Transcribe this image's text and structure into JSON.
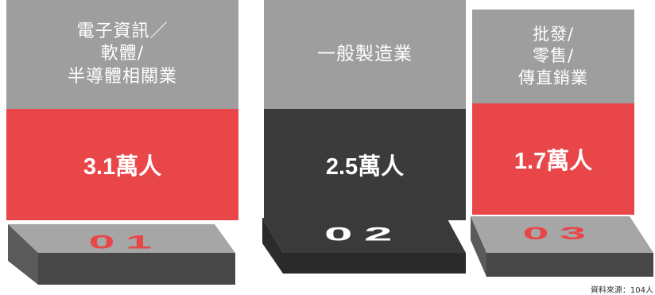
{
  "colors": {
    "gray": "#9e9e9e",
    "red": "#e9464a",
    "dark": "#3b3b3b",
    "plinth_top_red": "#a6a6a6",
    "plinth_top_dark": "#3a3a3a"
  },
  "columns": [
    {
      "category": "電子資訊／\n軟體/\n半導體相關業",
      "value": "3.1萬人",
      "rank": "01",
      "color": "red"
    },
    {
      "category": "一般製造業",
      "value": "2.5萬人",
      "rank": "02",
      "color": "dark"
    },
    {
      "category": "批發/\n零售/\n傳直銷業",
      "value": "1.7萬人",
      "rank": "03",
      "color": "red"
    }
  ],
  "source": "資料來源：104人"
}
